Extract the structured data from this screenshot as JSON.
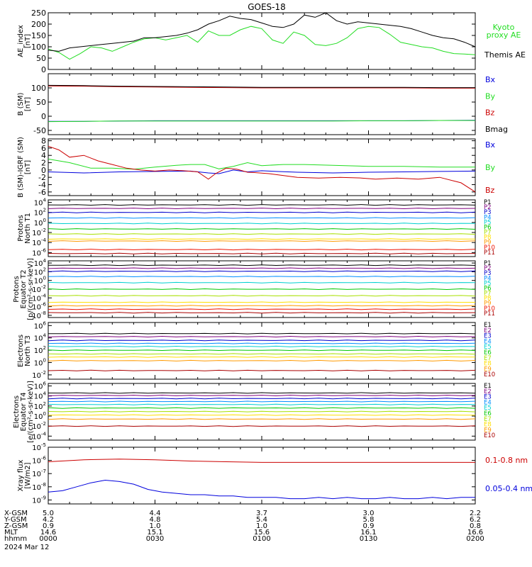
{
  "title": "GOES-18",
  "colors": {
    "black": "#000000",
    "red": "#cc0000",
    "green": "#22dd22",
    "blue": "#0000dd"
  },
  "chart_data": [
    {
      "type": "line",
      "panel": "ae",
      "ylabel": [
        "AE_index",
        "[nT]"
      ],
      "yticks": [
        "250",
        "200",
        "150",
        "100",
        "50",
        "0"
      ],
      "ylim": [
        0,
        250
      ],
      "series": [
        {
          "name": "Kyoto proxy AE",
          "legend": [
            "Kyoto",
            "proxy AE"
          ],
          "color": "#22dd22",
          "t": [
            0,
            3,
            6,
            9,
            12,
            15,
            18,
            21,
            24,
            27,
            30,
            33,
            36,
            39,
            42,
            45,
            48,
            51,
            54,
            57,
            60,
            63,
            66,
            69,
            72,
            75,
            78,
            81,
            84,
            87,
            90,
            93,
            96,
            99,
            102,
            105,
            108,
            111,
            114,
            117,
            120
          ],
          "values": [
            90,
            75,
            45,
            70,
            100,
            95,
            80,
            100,
            120,
            135,
            140,
            130,
            140,
            150,
            120,
            170,
            150,
            150,
            175,
            190,
            180,
            130,
            115,
            165,
            150,
            110,
            105,
            115,
            140,
            180,
            190,
            185,
            155,
            120,
            110,
            100,
            95,
            80,
            70,
            68,
            65
          ]
        },
        {
          "name": "Themis AE",
          "legend": [
            "Themis AE"
          ],
          "color": "#000000",
          "t": [
            0,
            3,
            6,
            9,
            12,
            15,
            18,
            21,
            24,
            27,
            30,
            33,
            36,
            39,
            42,
            45,
            48,
            51,
            54,
            57,
            60,
            63,
            66,
            69,
            72,
            75,
            78,
            81,
            84,
            87,
            90,
            93,
            96,
            99,
            102,
            105,
            108,
            111,
            114,
            117,
            120
          ],
          "values": [
            85,
            80,
            95,
            100,
            105,
            110,
            115,
            120,
            125,
            140,
            140,
            145,
            150,
            160,
            175,
            200,
            215,
            235,
            225,
            220,
            205,
            190,
            185,
            200,
            240,
            230,
            250,
            215,
            200,
            210,
            205,
            200,
            195,
            190,
            180,
            165,
            150,
            140,
            135,
            120,
            100
          ]
        }
      ]
    },
    {
      "type": "line",
      "panel": "bsm",
      "ylabel": [
        "B (SM)",
        "[nT]"
      ],
      "yticks": [
        "100",
        "50",
        "0",
        "-50"
      ],
      "ylim": [
        -65,
        150
      ],
      "series": [
        {
          "name": "Bx",
          "color": "#0000dd",
          "values": [
            -18,
            -18,
            -17,
            -16,
            -16,
            -16,
            -16,
            -16,
            -16,
            -16,
            -16,
            -15,
            -14
          ]
        },
        {
          "name": "By",
          "color": "#22dd22",
          "values": [
            -19,
            -18,
            -17,
            -17,
            -17,
            -17,
            -17,
            -17,
            -17,
            -16,
            -16,
            -15,
            -15
          ]
        },
        {
          "name": "Bz",
          "color": "#cc0000",
          "values": [
            107,
            106,
            104,
            103,
            102,
            101,
            100,
            100,
            100,
            100,
            100,
            99,
            99
          ]
        },
        {
          "name": "Bmag",
          "color": "#000000",
          "values": [
            109,
            108,
            106,
            105,
            104,
            103,
            102,
            102,
            102,
            102,
            102,
            101,
            101
          ]
        }
      ]
    },
    {
      "type": "line",
      "panel": "bdiff",
      "ylabel": [
        "B (SM)-IGRF (SM)",
        "[nT]"
      ],
      "yticks": [
        "8",
        "6",
        "4",
        "2",
        "0",
        "-2",
        "-4",
        "-6"
      ],
      "ylim": [
        -7,
        8.5
      ],
      "series": [
        {
          "name": "Bx",
          "color": "#0000dd",
          "t": [
            0,
            10,
            20,
            30,
            40,
            45,
            48,
            52,
            56,
            60,
            64,
            70,
            80,
            90,
            100,
            110,
            120
          ],
          "values": [
            -0.5,
            -0.8,
            -0.5,
            -0.4,
            -0.3,
            -0.8,
            -1.0,
            0.0,
            -0.5,
            -0.2,
            -0.4,
            -0.6,
            -0.8,
            -0.6,
            -0.5,
            -0.4,
            -0.3
          ]
        },
        {
          "name": "By",
          "color": "#22dd22",
          "t": [
            0,
            6,
            12,
            18,
            24,
            30,
            36,
            40,
            44,
            48,
            52,
            56,
            60,
            66,
            72,
            80,
            90,
            100,
            110,
            120
          ],
          "values": [
            3,
            2,
            0.5,
            0.5,
            0.2,
            0.8,
            1.3,
            1.5,
            1.5,
            0.3,
            1.0,
            2.0,
            1.2,
            1.5,
            1.5,
            1.3,
            1.0,
            1.0,
            0.8,
            0.8
          ]
        },
        {
          "name": "Bz",
          "color": "#cc0000",
          "t": [
            0,
            3,
            6,
            10,
            14,
            18,
            22,
            26,
            30,
            34,
            38,
            42,
            45,
            47,
            50,
            53,
            56,
            58,
            62,
            66,
            70,
            76,
            82,
            88,
            92,
            98,
            104,
            110,
            116,
            120
          ],
          "values": [
            6.5,
            5.5,
            3.5,
            4.0,
            2.5,
            1.5,
            0.5,
            0.0,
            -0.3,
            0.0,
            -0.2,
            -0.5,
            -2.5,
            -1.0,
            0.5,
            0.2,
            -0.6,
            -0.7,
            -1.0,
            -1.5,
            -2.0,
            -2.2,
            -2.0,
            -2.2,
            -2.5,
            -2.2,
            -2.5,
            -2.0,
            -3.5,
            -6.0
          ]
        }
      ]
    },
    {
      "type": "line",
      "panel": "p_north",
      "log": true,
      "ylabel": [
        "Protons",
        "North T1"
      ],
      "yticks": [
        {
          "b": "10",
          "e": "4",
          "v": 4
        },
        {
          "b": "10",
          "e": "2",
          "v": 2
        },
        {
          "b": "10",
          "e": "0",
          "v": 0
        },
        {
          "b": "10",
          "e": "-2",
          "v": -2
        },
        {
          "b": "10",
          "e": "-4",
          "v": -4
        },
        {
          "b": "10",
          "e": "-6",
          "v": -6
        }
      ],
      "ylim": [
        -6.8,
        4.5
      ],
      "channels": [
        {
          "name": "P1",
          "color": "#000000",
          "value": 3.5
        },
        {
          "name": "P2",
          "color": "#7f007f",
          "value": 2.8
        },
        {
          "name": "P3",
          "color": "#0000cc",
          "value": 2.0
        },
        {
          "name": "P4",
          "color": "#008fff",
          "value": 0.9
        },
        {
          "name": "P5",
          "color": "#00d0d0",
          "value": -0.2
        },
        {
          "name": "P6",
          "color": "#00c800",
          "value": -1.3
        },
        {
          "name": "P7",
          "color": "#a8e000",
          "value": -2.3
        },
        {
          "name": "P8",
          "color": "#ffe000",
          "value": -3.3
        },
        {
          "name": "P9",
          "color": "#ff9a00",
          "value": -3.7
        },
        {
          "name": "P10",
          "color": "#ee1100",
          "value": -5.4
        },
        {
          "name": "P11",
          "color": "#aa0000",
          "value": -6.2
        }
      ]
    },
    {
      "type": "line",
      "panel": "p_eq",
      "log": true,
      "ylabel": [
        "Protons",
        "Equator T2",
        "[p/(cm²-s-sr-keV)]"
      ],
      "yticks": [
        {
          "b": "10",
          "e": "4",
          "v": 4
        },
        {
          "b": "10",
          "e": "2",
          "v": 2
        },
        {
          "b": "10",
          "e": "0",
          "v": 0
        },
        {
          "b": "10",
          "e": "-2",
          "v": -2
        },
        {
          "b": "10",
          "e": "-4",
          "v": -4
        },
        {
          "b": "10",
          "e": "-6",
          "v": -6
        },
        {
          "b": "10",
          "e": "-8",
          "v": -8
        }
      ],
      "ylim": [
        -8.5,
        4.5
      ],
      "channels": [
        {
          "name": "P1",
          "color": "#000000",
          "value": 3.5
        },
        {
          "name": "P2",
          "color": "#7f007f",
          "value": 2.8
        },
        {
          "name": "P3",
          "color": "#0000cc",
          "value": 2.1
        },
        {
          "name": "P4",
          "color": "#008fff",
          "value": 0.9
        },
        {
          "name": "P5",
          "color": "#00d0d0",
          "value": -0.5
        },
        {
          "name": "P6",
          "color": "#00c800",
          "value": -2.0
        },
        {
          "name": "P7",
          "color": "#a8e000",
          "value": -3.5
        },
        {
          "name": "P8",
          "color": "#ffe000",
          "value": -5.0
        },
        {
          "name": "P9",
          "color": "#ff9a00",
          "value": -5.8
        },
        {
          "name": "P10",
          "color": "#ee1100",
          "value": -6.6
        },
        {
          "name": "P11",
          "color": "#aa0000",
          "value": -7.4
        }
      ]
    },
    {
      "type": "line",
      "panel": "e_north",
      "log": true,
      "ylabel": [
        "Electrons",
        "North T3"
      ],
      "yticks": [
        {
          "b": "10",
          "e": "6",
          "v": 6
        },
        {
          "b": "10",
          "e": "4",
          "v": 4
        },
        {
          "b": "10",
          "e": "2",
          "v": 2
        },
        {
          "b": "10",
          "e": "0",
          "v": 0
        },
        {
          "b": "10",
          "e": "-2",
          "v": -2
        }
      ],
      "ylim": [
        -2.7,
        6.5
      ],
      "channels": [
        {
          "name": "E1",
          "color": "#000000",
          "value": 4.7
        },
        {
          "name": "E2",
          "color": "#7f007f",
          "value": 4.2
        },
        {
          "name": "E3",
          "color": "#0000cc",
          "value": 3.6
        },
        {
          "name": "E4",
          "color": "#008fff",
          "value": 3.1
        },
        {
          "name": "E5",
          "color": "#00d0d0",
          "value": 2.6
        },
        {
          "name": "E6",
          "color": "#00c800",
          "value": 2.0
        },
        {
          "name": "E7",
          "color": "#a8e000",
          "value": 1.4
        },
        {
          "name": "E8",
          "color": "#ffe000",
          "value": 0.9
        },
        {
          "name": "E9",
          "color": "#ff9a00",
          "value": 0.3
        },
        {
          "name": "E10",
          "color": "#aa0000",
          "value": -1.3
        }
      ]
    },
    {
      "type": "line",
      "panel": "e_eq",
      "log": true,
      "ylabel": [
        "Electrons",
        "Equator T4",
        "[e/(cm²-s-sr-keV)]"
      ],
      "yticks": [
        {
          "b": "10",
          "e": "6",
          "v": 6
        },
        {
          "b": "10",
          "e": "4",
          "v": 4
        },
        {
          "b": "10",
          "e": "2",
          "v": 2
        },
        {
          "b": "10",
          "e": "0",
          "v": 0
        },
        {
          "b": "10",
          "e": "-2",
          "v": -2
        },
        {
          "b": "10",
          "e": "-4",
          "v": -4
        }
      ],
      "ylim": [
        -4.8,
        6.5
      ],
      "channels": [
        {
          "name": "E1",
          "color": "#000000",
          "value": 4.6
        },
        {
          "name": "E2",
          "color": "#7f007f",
          "value": 4.1
        },
        {
          "name": "E3",
          "color": "#0000cc",
          "value": 3.5
        },
        {
          "name": "E4",
          "color": "#008fff",
          "value": 2.9
        },
        {
          "name": "E5",
          "color": "#00d0d0",
          "value": 2.3
        },
        {
          "name": "E6",
          "color": "#00c800",
          "value": 1.6
        },
        {
          "name": "E7",
          "color": "#a8e000",
          "value": 0.9
        },
        {
          "name": "E8",
          "color": "#ffe000",
          "value": 0.2
        },
        {
          "name": "E9",
          "color": "#ff9a00",
          "value": -0.6
        },
        {
          "name": "E10",
          "color": "#aa0000",
          "value": -2.0
        }
      ]
    },
    {
      "type": "line",
      "panel": "xray",
      "log": true,
      "ylabel": [
        "Xray flux",
        "[W/m2]"
      ],
      "yticks": [
        {
          "b": "10",
          "e": "-5",
          "v": -5
        },
        {
          "b": "10",
          "e": "-6",
          "v": -6
        },
        {
          "b": "10",
          "e": "-7",
          "v": -7
        },
        {
          "b": "10",
          "e": "-8",
          "v": -8
        },
        {
          "b": "10",
          "e": "-9",
          "v": -9
        }
      ],
      "ylim": [
        -9.3,
        -5
      ],
      "series": [
        {
          "name": "0.1-0.8 nm",
          "color": "#cc0000",
          "t": [
            0,
            10,
            20,
            30,
            40,
            50,
            60,
            70,
            80,
            90,
            100,
            110,
            120
          ],
          "values": [
            -6.1,
            -5.95,
            -5.9,
            -5.95,
            -6.05,
            -6.1,
            -6.15,
            -6.15,
            -6.15,
            -6.15,
            -6.15,
            -6.15,
            -6.15
          ]
        },
        {
          "name": "0.05-0.4 nm",
          "color": "#0000dd",
          "t": [
            0,
            4,
            8,
            12,
            16,
            20,
            24,
            28,
            32,
            36,
            40,
            44,
            48,
            52,
            56,
            60,
            64,
            68,
            72,
            76,
            80,
            84,
            88,
            92,
            96,
            100,
            104,
            108,
            112,
            116,
            120
          ],
          "values": [
            -8.4,
            -8.3,
            -8.0,
            -7.7,
            -7.5,
            -7.6,
            -7.8,
            -8.2,
            -8.4,
            -8.5,
            -8.6,
            -8.6,
            -8.7,
            -8.7,
            -8.8,
            -8.8,
            -8.8,
            -8.9,
            -8.9,
            -8.8,
            -8.9,
            -8.8,
            -8.9,
            -8.9,
            -8.8,
            -8.9,
            -8.9,
            -8.8,
            -8.9,
            -8.8,
            -8.8
          ]
        }
      ]
    }
  ],
  "xaxis": {
    "labels": [
      "X-GSM",
      "Y-GSM",
      "Z-GSM",
      "MLT",
      "hhmm"
    ],
    "date": "2024 Mar 12",
    "ticks": [
      {
        "t": 0,
        "rows": [
          "5.0",
          "4.2",
          "0.9",
          "14.6",
          "0000"
        ]
      },
      {
        "t": 30,
        "rows": [
          "4.4",
          "4.8",
          "1.0",
          "15.1",
          "0030"
        ]
      },
      {
        "t": 60,
        "rows": [
          "3.7",
          "5.4",
          "1.0",
          "15.6",
          "0100"
        ]
      },
      {
        "t": 90,
        "rows": [
          "3.0",
          "5.8",
          "0.9",
          "16.1",
          "0130"
        ]
      },
      {
        "t": 120,
        "rows": [
          "2.2",
          "6.2",
          "0.8",
          "16.6",
          "0200"
        ]
      }
    ],
    "tmin": 0,
    "tmax": 120
  }
}
